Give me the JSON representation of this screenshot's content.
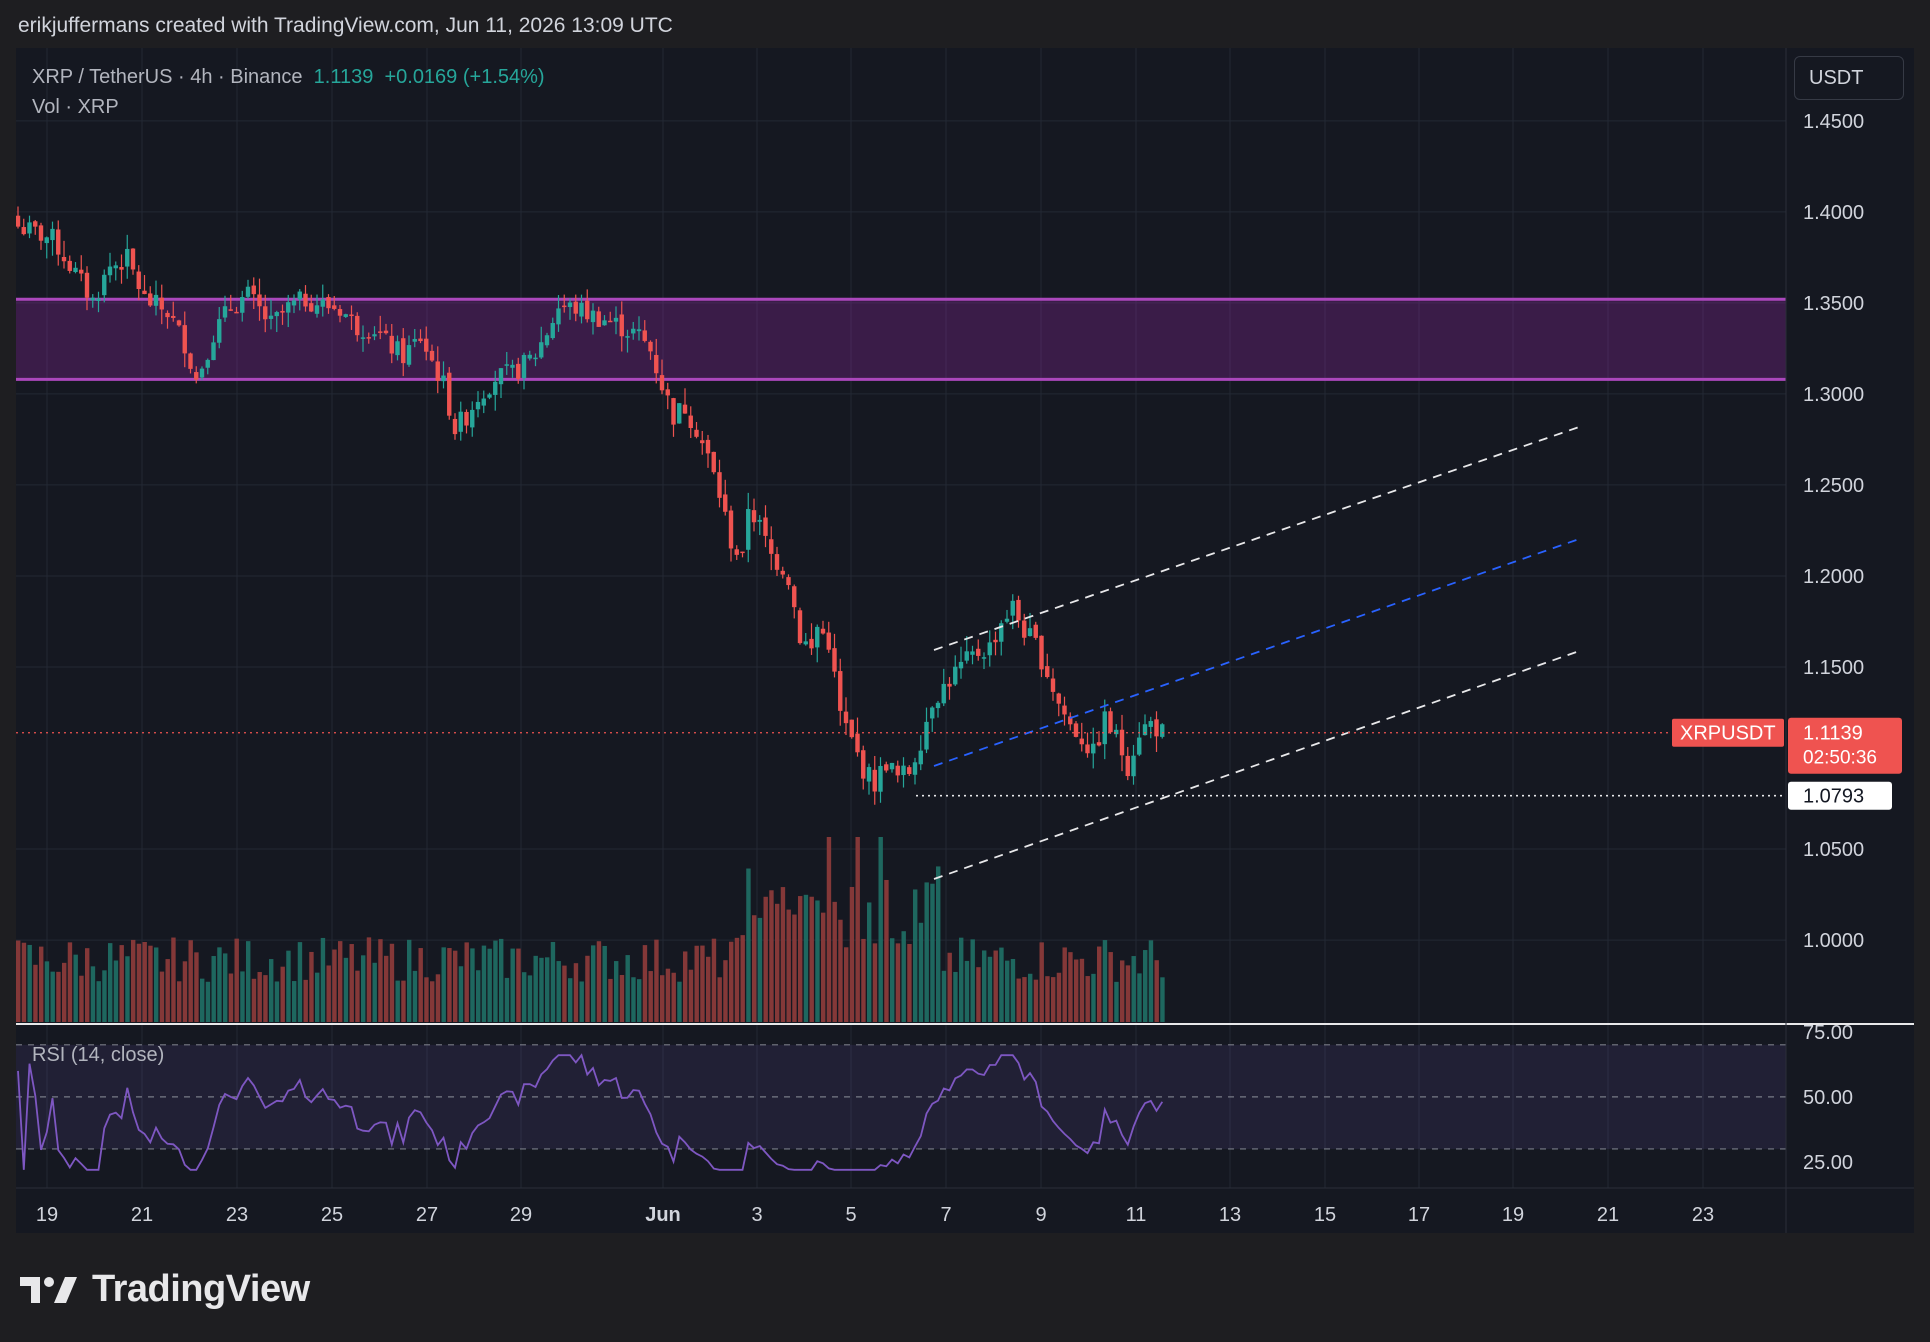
{
  "header": {
    "attribution": "erikjuffermans created with TradingView.com, Jun 11, 2026 13:09 UTC"
  },
  "legend": {
    "symbol": "XRP / TetherUS · 4h · Binance",
    "last": "1.1139",
    "change": "+0.0169 (+1.54%)",
    "volume": "Vol · XRP",
    "rsi": "RSI (14, close)"
  },
  "currency_button": "USDT",
  "brand": "TradingView",
  "colors": {
    "up": "#26a69a",
    "down": "#ef5350",
    "zone": "#9c27b0",
    "rsi_line": "#7e57c2",
    "background": "#151821"
  },
  "chart_data": [
    {
      "type": "candlestick",
      "interval": "4h",
      "symbol": "XRPUSDT",
      "exchange": "Binance",
      "x_ticks": [
        "19",
        "21",
        "23",
        "25",
        "27",
        "29",
        "Jun",
        "3",
        "5",
        "7",
        "9",
        "11",
        "13",
        "15",
        "17",
        "19",
        "21",
        "23"
      ],
      "y_ticks": [
        "1.4500",
        "1.4000",
        "1.3500",
        "1.3000",
        "1.2500",
        "1.2000",
        "1.1500",
        "1.0500",
        "1.0000"
      ],
      "ylim": [
        0.955,
        1.49
      ],
      "last_price": {
        "label": "XRPUSDT",
        "value": "1.1139",
        "countdown": "02:50:36"
      },
      "level_line": {
        "value": "1.0793"
      },
      "resistance_zone": [
        1.308,
        1.352
      ],
      "close_path": [
        [
          0,
          1.392
        ],
        [
          6,
          1.385
        ],
        [
          10,
          1.366
        ],
        [
          13,
          1.351
        ],
        [
          16,
          1.37
        ],
        [
          19,
          1.374
        ],
        [
          22,
          1.352
        ],
        [
          26,
          1.345
        ],
        [
          29,
          1.328
        ],
        [
          31,
          1.308
        ],
        [
          34,
          1.333
        ],
        [
          37,
          1.348
        ],
        [
          40,
          1.354
        ],
        [
          44,
          1.338
        ],
        [
          47,
          1.347
        ],
        [
          50,
          1.352
        ],
        [
          53,
          1.349
        ],
        [
          56,
          1.347
        ],
        [
          59,
          1.337
        ],
        [
          62,
          1.336
        ],
        [
          64,
          1.328
        ],
        [
          67,
          1.321
        ],
        [
          70,
          1.331
        ],
        [
          72,
          1.318
        ],
        [
          74,
          1.305
        ],
        [
          76,
          1.281
        ],
        [
          78,
          1.288
        ],
        [
          80,
          1.299
        ],
        [
          83,
          1.309
        ],
        [
          86,
          1.311
        ],
        [
          88,
          1.316
        ],
        [
          90,
          1.322
        ],
        [
          92,
          1.334
        ],
        [
          94,
          1.348
        ],
        [
          97,
          1.347
        ],
        [
          100,
          1.343
        ],
        [
          103,
          1.34
        ],
        [
          106,
          1.335
        ],
        [
          108,
          1.332
        ],
        [
          110,
          1.324
        ],
        [
          112,
          1.305
        ],
        [
          114,
          1.288
        ],
        [
          116,
          1.293
        ],
        [
          118,
          1.281
        ],
        [
          120,
          1.265
        ],
        [
          122,
          1.245
        ],
        [
          124,
          1.219
        ],
        [
          126,
          1.208
        ],
        [
          127,
          1.239
        ],
        [
          129,
          1.227
        ],
        [
          131,
          1.211
        ],
        [
          133,
          1.205
        ],
        [
          134,
          1.199
        ],
        [
          136,
          1.167
        ],
        [
          138,
          1.159
        ],
        [
          139,
          1.172
        ],
        [
          141,
          1.164
        ],
        [
          143,
          1.124
        ],
        [
          145,
          1.109
        ],
        [
          147,
          1.094
        ],
        [
          149,
          1.086
        ],
        [
          151,
          1.098
        ],
        [
          153,
          1.089
        ],
        [
          155,
          1.093
        ],
        [
          157,
          1.11
        ],
        [
          159,
          1.132
        ],
        [
          161,
          1.139
        ],
        [
          163,
          1.147
        ],
        [
          165,
          1.153
        ],
        [
          167,
          1.158
        ],
        [
          169,
          1.161
        ],
        [
          171,
          1.175
        ],
        [
          173,
          1.183
        ],
        [
          175,
          1.17
        ],
        [
          177,
          1.162
        ],
        [
          179,
          1.147
        ],
        [
          181,
          1.13
        ],
        [
          183,
          1.118
        ],
        [
          185,
          1.111
        ],
        [
          187,
          1.102
        ],
        [
          189,
          1.121
        ],
        [
          191,
          1.111
        ],
        [
          193,
          1.096
        ],
        [
          195,
          1.115
        ],
        [
          197,
          1.119
        ],
        [
          199,
          1.114
        ]
      ],
      "volume_series": "relative bar heights, colored by candle direction",
      "rsi": {
        "title": "RSI (14, close)",
        "y_ticks": [
          "75.00",
          "50.00",
          "25.00"
        ],
        "bands": [
          70,
          50,
          30
        ],
        "ylim": [
          15,
          78
        ]
      },
      "annotations": [
        {
          "kind": "parallel-channel",
          "color": "#ffffff",
          "style": "dashed"
        },
        {
          "kind": "channel-median",
          "color": "#2962ff",
          "style": "dashed"
        }
      ]
    }
  ]
}
